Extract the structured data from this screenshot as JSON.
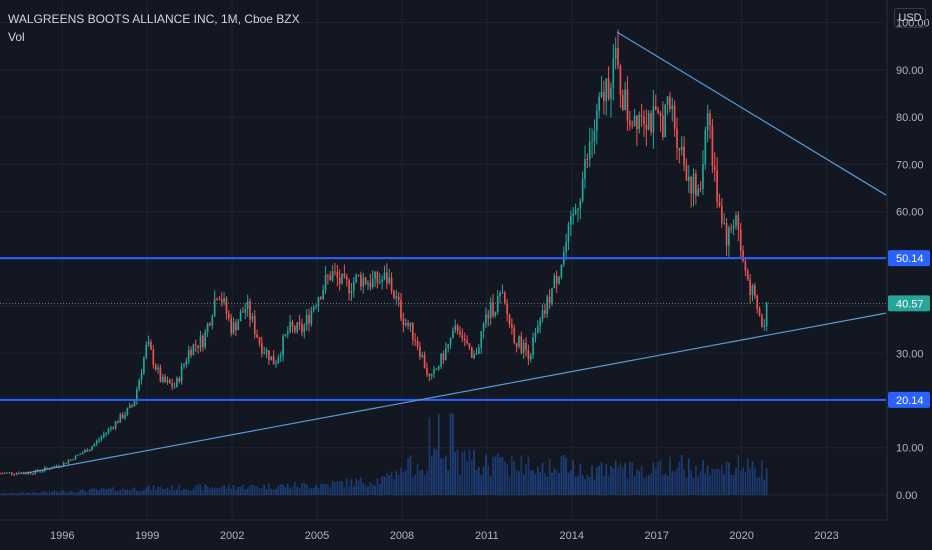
{
  "header": {
    "title": "WALGREENS BOOTS ALLIANCE INC, 1M, Cboe BZX",
    "volume_label": "Vol",
    "currency": "USD"
  },
  "chart_data": {
    "type": "candlestick",
    "title": "WALGREENS BOOTS ALLIANCE INC, 1M, Cboe BZX",
    "interval": "1M",
    "exchange": "Cboe BZX",
    "currency": "USD",
    "grid": true,
    "x_ticks": [
      "1996",
      "1999",
      "2002",
      "2005",
      "2008",
      "2011",
      "2014",
      "2017",
      "2020",
      "2023"
    ],
    "x_range": [
      1993.8,
      2025.1
    ],
    "y_ticks": [
      0,
      10,
      20,
      30,
      40,
      50,
      60,
      70,
      80,
      90,
      100
    ],
    "y_tick_labels": [
      "0.00",
      "10.00",
      "20.00",
      "30.00",
      "40.00",
      "50.00",
      "60.00",
      "70.00",
      "80.00",
      "90.00",
      "100.00"
    ],
    "y_range": [
      -5.3,
      104.8
    ],
    "last_price": 40.57,
    "last_price_label": "40.57",
    "horizontal_lines": [
      {
        "value": 50.14,
        "label": "50.14",
        "color": "#2962ff"
      },
      {
        "value": 20.14,
        "label": "20.14",
        "color": "#2962ff"
      }
    ],
    "trend_lines": [
      {
        "name": "support",
        "from": [
          1994.6,
          4.5
        ],
        "to": [
          2025.1,
          38.5
        ],
        "color": "#5b9bd5"
      },
      {
        "name": "resistance",
        "from": [
          2015.6,
          98.0
        ],
        "to": [
          2025.1,
          63.5
        ],
        "color": "#5b9bd5"
      }
    ],
    "price_anchors": [
      [
        1993.8,
        4.6
      ],
      [
        1995.0,
        4.8
      ],
      [
        1996.0,
        6.5
      ],
      [
        1997.0,
        10.0
      ],
      [
        1998.0,
        16.0
      ],
      [
        1998.5,
        19.0
      ],
      [
        1999.0,
        32.0
      ],
      [
        1999.5,
        24.0
      ],
      [
        2000.0,
        23.0
      ],
      [
        2000.5,
        31.0
      ],
      [
        2001.0,
        33.0
      ],
      [
        2001.5,
        44.0
      ],
      [
        2002.0,
        35.0
      ],
      [
        2002.5,
        40.0
      ],
      [
        2003.0,
        32.0
      ],
      [
        2003.5,
        28.0
      ],
      [
        2004.0,
        35.0
      ],
      [
        2004.5,
        35.0
      ],
      [
        2005.0,
        42.0
      ],
      [
        2005.5,
        47.0
      ],
      [
        2006.0,
        44.0
      ],
      [
        2006.5,
        46.0
      ],
      [
        2007.0,
        45.0
      ],
      [
        2007.5,
        46.0
      ],
      [
        2008.0,
        38.0
      ],
      [
        2008.5,
        33.0
      ],
      [
        2009.0,
        24.0
      ],
      [
        2009.5,
        30.0
      ],
      [
        2010.0,
        36.0
      ],
      [
        2010.5,
        28.0
      ],
      [
        2011.0,
        38.0
      ],
      [
        2011.5,
        42.0
      ],
      [
        2012.0,
        33.0
      ],
      [
        2012.5,
        30.0
      ],
      [
        2013.0,
        38.0
      ],
      [
        2013.5,
        47.0
      ],
      [
        2014.0,
        57.0
      ],
      [
        2014.5,
        70.0
      ],
      [
        2015.0,
        82.0
      ],
      [
        2015.5,
        92.0
      ],
      [
        2016.0,
        80.0
      ],
      [
        2016.5,
        82.0
      ],
      [
        2017.0,
        78.0
      ],
      [
        2017.5,
        82.0
      ],
      [
        2018.0,
        70.0
      ],
      [
        2018.5,
        62.0
      ],
      [
        2018.8,
        84.0
      ],
      [
        2019.0,
        68.0
      ],
      [
        2019.5,
        54.0
      ],
      [
        2019.8,
        60.0
      ],
      [
        2020.0,
        50.0
      ],
      [
        2020.3,
        44.0
      ],
      [
        2020.6,
        38.0
      ],
      [
        2020.8,
        35.0
      ],
      [
        2020.92,
        40.57
      ]
    ],
    "volume_anchors": [
      [
        1993.8,
        0.3
      ],
      [
        1996.0,
        0.8
      ],
      [
        1999.0,
        1.5
      ],
      [
        2002.0,
        1.8
      ],
      [
        2005.0,
        2.2
      ],
      [
        2007.5,
        3.5
      ],
      [
        2008.5,
        7.0
      ],
      [
        2009.5,
        8.0
      ],
      [
        2011.0,
        7.0
      ],
      [
        2013.0,
        7.0
      ],
      [
        2014.5,
        6.0
      ],
      [
        2016.0,
        5.5
      ],
      [
        2018.0,
        6.5
      ],
      [
        2020.0,
        6.5
      ],
      [
        2020.92,
        5.5
      ]
    ]
  }
}
